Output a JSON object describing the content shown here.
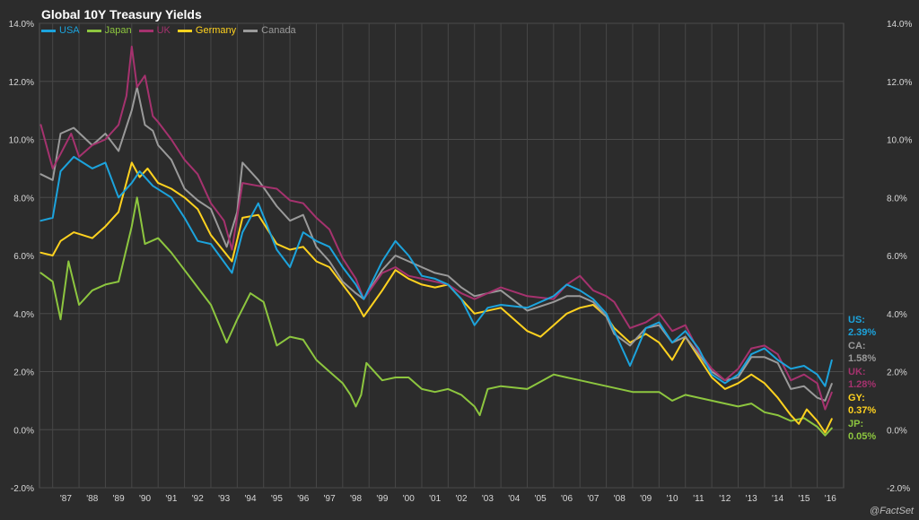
{
  "chart_data": {
    "type": "line",
    "title": "Global 10Y Treasury Yields",
    "xlabel": "",
    "ylabel": "",
    "ylim": [
      -2.0,
      14.0
    ],
    "y_ticks": [
      "-2.0%",
      "0.0%",
      "2.0%",
      "4.0%",
      "6.0%",
      "8.0%",
      "10.0%",
      "12.0%",
      "14.0%"
    ],
    "x_ticks": [
      "'87",
      "'88",
      "'89",
      "'90",
      "'91",
      "'92",
      "'93",
      "'94",
      "'95",
      "'96",
      "'97",
      "'98",
      "'99",
      "'00",
      "'01",
      "'02",
      "'03",
      "'04",
      "'05",
      "'06",
      "'07",
      "'08",
      "'09",
      "'10",
      "'11",
      "'12",
      "'13",
      "'14",
      "'15",
      "'16"
    ],
    "xlim": [
      1986.5,
      2017.0
    ],
    "grid": true,
    "legend_position": "top-left",
    "series": [
      {
        "name": "USA",
        "color": "#1ca3dc",
        "x": [
          1986.55,
          1987.0,
          1987.3,
          1987.8,
          1988.5,
          1989.0,
          1989.5,
          1990.0,
          1990.3,
          1990.8,
          1991.5,
          1992.0,
          1992.5,
          1993.0,
          1993.8,
          1994.2,
          1994.8,
          1995.5,
          1996.0,
          1996.5,
          1997.0,
          1997.5,
          1998.0,
          1998.5,
          1998.8,
          1999.5,
          2000.0,
          2000.5,
          2001.0,
          2001.5,
          2002.0,
          2002.5,
          2003.0,
          2003.5,
          2004.0,
          2005.0,
          2006.0,
          2006.5,
          2007.0,
          2007.5,
          2008.0,
          2008.3,
          2008.9,
          2009.5,
          2010.0,
          2010.5,
          2011.0,
          2011.5,
          2012.0,
          2012.5,
          2013.0,
          2013.5,
          2014.0,
          2014.5,
          2015.0,
          2015.5,
          2016.0,
          2016.3,
          2016.55
        ],
        "y": [
          7.2,
          7.3,
          8.9,
          9.4,
          9.0,
          9.2,
          8.0,
          8.5,
          8.9,
          8.4,
          8.0,
          7.3,
          6.5,
          6.4,
          5.4,
          6.8,
          7.8,
          6.2,
          5.6,
          6.8,
          6.5,
          6.3,
          5.6,
          5.0,
          4.5,
          5.8,
          6.5,
          6.0,
          5.3,
          5.2,
          5.0,
          4.5,
          3.6,
          4.2,
          4.3,
          4.2,
          4.6,
          5.0,
          4.8,
          4.5,
          4.0,
          3.4,
          2.2,
          3.5,
          3.7,
          3.0,
          3.4,
          2.8,
          1.9,
          1.6,
          1.9,
          2.6,
          2.8,
          2.4,
          2.1,
          2.2,
          1.9,
          1.5,
          2.39
        ],
        "end_label": "US:",
        "end_value": "2.39%"
      },
      {
        "name": "Japan",
        "color": "#8dc63f",
        "x": [
          1986.55,
          1987.0,
          1987.3,
          1987.6,
          1988.0,
          1988.5,
          1989.0,
          1989.5,
          1990.0,
          1990.2,
          1990.5,
          1991.0,
          1991.5,
          1992.0,
          1992.5,
          1993.0,
          1993.6,
          1994.0,
          1994.5,
          1995.0,
          1995.5,
          1996.0,
          1996.5,
          1997.0,
          1997.5,
          1998.0,
          1998.3,
          1998.5,
          1998.7,
          1998.9,
          1999.5,
          2000.0,
          2000.5,
          2001.0,
          2001.5,
          2002.0,
          2002.5,
          2003.0,
          2003.2,
          2003.5,
          2004.0,
          2005.0,
          2006.0,
          2006.5,
          2007.0,
          2008.0,
          2009.0,
          2010.0,
          2010.5,
          2011.0,
          2012.0,
          2013.0,
          2013.5,
          2014.0,
          2014.5,
          2015.0,
          2015.5,
          2016.0,
          2016.3,
          2016.55
        ],
        "y": [
          5.4,
          5.1,
          3.8,
          5.8,
          4.3,
          4.8,
          5.0,
          5.1,
          7.0,
          8.0,
          6.4,
          6.6,
          6.1,
          5.5,
          4.9,
          4.3,
          3.0,
          3.8,
          4.7,
          4.4,
          2.9,
          3.2,
          3.1,
          2.4,
          2.0,
          1.6,
          1.2,
          0.8,
          1.2,
          2.3,
          1.7,
          1.8,
          1.8,
          1.4,
          1.3,
          1.4,
          1.2,
          0.8,
          0.5,
          1.4,
          1.5,
          1.4,
          1.9,
          1.8,
          1.7,
          1.5,
          1.3,
          1.3,
          1.0,
          1.2,
          1.0,
          0.8,
          0.9,
          0.6,
          0.5,
          0.3,
          0.4,
          0.1,
          -0.2,
          0.05
        ],
        "end_label": "JP:",
        "end_value": "0.05%"
      },
      {
        "name": "UK",
        "color": "#a5326e",
        "x": [
          1986.55,
          1987.0,
          1987.3,
          1987.7,
          1988.0,
          1988.5,
          1989.0,
          1989.5,
          1989.8,
          1990.0,
          1990.2,
          1990.5,
          1990.8,
          1991.0,
          1991.5,
          1992.0,
          1992.5,
          1993.0,
          1993.5,
          1993.8,
          1994.2,
          1994.8,
          1995.5,
          1996.0,
          1996.5,
          1997.0,
          1997.5,
          1998.0,
          1998.5,
          1998.8,
          1999.5,
          2000.0,
          2000.5,
          2001.0,
          2001.5,
          2002.0,
          2002.5,
          2003.0,
          2004.0,
          2005.0,
          2006.0,
          2006.5,
          2007.0,
          2007.5,
          2008.0,
          2008.3,
          2008.9,
          2009.5,
          2010.0,
          2010.5,
          2011.0,
          2011.5,
          2012.0,
          2012.5,
          2013.0,
          2013.5,
          2014.0,
          2014.5,
          2015.0,
          2015.5,
          2016.0,
          2016.3,
          2016.55
        ],
        "y": [
          10.5,
          9.0,
          9.5,
          10.2,
          9.4,
          9.8,
          10.0,
          10.5,
          11.5,
          13.2,
          11.8,
          12.2,
          10.8,
          10.6,
          10.0,
          9.3,
          8.8,
          7.8,
          7.2,
          6.2,
          8.5,
          8.4,
          8.3,
          7.9,
          7.8,
          7.3,
          6.9,
          5.9,
          5.2,
          4.5,
          5.4,
          5.6,
          5.3,
          5.2,
          5.1,
          5.0,
          4.7,
          4.5,
          4.9,
          4.6,
          4.5,
          5.0,
          5.3,
          4.8,
          4.6,
          4.4,
          3.5,
          3.7,
          4.0,
          3.4,
          3.6,
          2.7,
          2.1,
          1.7,
          2.1,
          2.8,
          2.9,
          2.6,
          1.7,
          1.9,
          1.6,
          0.7,
          1.28
        ],
        "end_label": "UK:",
        "end_value": "1.28%"
      },
      {
        "name": "Germany",
        "color": "#ffd21f",
        "x": [
          1986.55,
          1987.0,
          1987.3,
          1987.8,
          1988.5,
          1989.0,
          1989.5,
          1990.0,
          1990.3,
          1990.6,
          1991.0,
          1991.5,
          1992.0,
          1992.5,
          1993.0,
          1993.8,
          1994.2,
          1994.8,
          1995.5,
          1996.0,
          1996.5,
          1997.0,
          1997.5,
          1998.0,
          1998.5,
          1998.8,
          1999.5,
          2000.0,
          2000.5,
          2001.0,
          2001.5,
          2002.0,
          2002.5,
          2003.0,
          2004.0,
          2005.0,
          2005.5,
          2006.0,
          2006.5,
          2007.0,
          2007.5,
          2008.0,
          2008.3,
          2008.9,
          2009.5,
          2010.0,
          2010.5,
          2011.0,
          2011.5,
          2012.0,
          2012.5,
          2013.0,
          2013.5,
          2014.0,
          2014.5,
          2015.0,
          2015.3,
          2015.6,
          2016.0,
          2016.3,
          2016.55
        ],
        "y": [
          6.1,
          6.0,
          6.5,
          6.8,
          6.6,
          7.0,
          7.5,
          9.2,
          8.7,
          9.0,
          8.5,
          8.3,
          8.0,
          7.6,
          6.7,
          5.8,
          7.3,
          7.4,
          6.4,
          6.2,
          6.3,
          5.8,
          5.6,
          5.0,
          4.4,
          3.9,
          4.8,
          5.5,
          5.2,
          5.0,
          4.9,
          5.0,
          4.5,
          4.0,
          4.2,
          3.4,
          3.2,
          3.6,
          4.0,
          4.2,
          4.3,
          3.9,
          3.5,
          3.0,
          3.3,
          3.0,
          2.4,
          3.2,
          2.5,
          1.8,
          1.4,
          1.6,
          1.9,
          1.6,
          1.1,
          0.5,
          0.2,
          0.7,
          0.3,
          -0.1,
          0.37
        ],
        "end_label": "GY:",
        "end_value": "0.37%"
      },
      {
        "name": "Canada",
        "color": "#9a9a9a",
        "x": [
          1986.55,
          1987.0,
          1987.3,
          1987.8,
          1988.5,
          1989.0,
          1989.5,
          1990.0,
          1990.2,
          1990.5,
          1990.8,
          1991.0,
          1991.5,
          1992.0,
          1992.5,
          1993.0,
          1993.6,
          1994.0,
          1994.2,
          1994.8,
          1995.5,
          1996.0,
          1996.5,
          1997.0,
          1997.5,
          1998.0,
          1998.5,
          1998.8,
          1999.5,
          2000.0,
          2000.5,
          2001.0,
          2001.5,
          2002.0,
          2002.5,
          2003.0,
          2004.0,
          2005.0,
          2006.0,
          2006.5,
          2007.0,
          2007.5,
          2008.0,
          2008.3,
          2008.9,
          2009.5,
          2010.0,
          2010.5,
          2011.0,
          2011.5,
          2012.0,
          2012.5,
          2013.0,
          2013.5,
          2014.0,
          2014.5,
          2015.0,
          2015.5,
          2016.0,
          2016.3,
          2016.55
        ],
        "y": [
          8.8,
          8.6,
          10.2,
          10.4,
          9.8,
          10.2,
          9.6,
          11.0,
          11.8,
          10.5,
          10.3,
          9.8,
          9.3,
          8.3,
          7.9,
          7.6,
          6.3,
          7.5,
          9.2,
          8.6,
          7.7,
          7.2,
          7.4,
          6.3,
          5.8,
          5.1,
          4.7,
          4.5,
          5.5,
          6.0,
          5.8,
          5.6,
          5.4,
          5.3,
          4.9,
          4.6,
          4.8,
          4.1,
          4.4,
          4.6,
          4.6,
          4.4,
          3.9,
          3.3,
          2.9,
          3.5,
          3.6,
          3.0,
          3.2,
          2.6,
          2.0,
          1.7,
          1.8,
          2.5,
          2.5,
          2.3,
          1.4,
          1.5,
          1.1,
          1.0,
          1.58
        ],
        "end_label": "CA:",
        "end_value": "1.58%"
      }
    ]
  },
  "footer": {
    "credit": "@FactSet"
  }
}
